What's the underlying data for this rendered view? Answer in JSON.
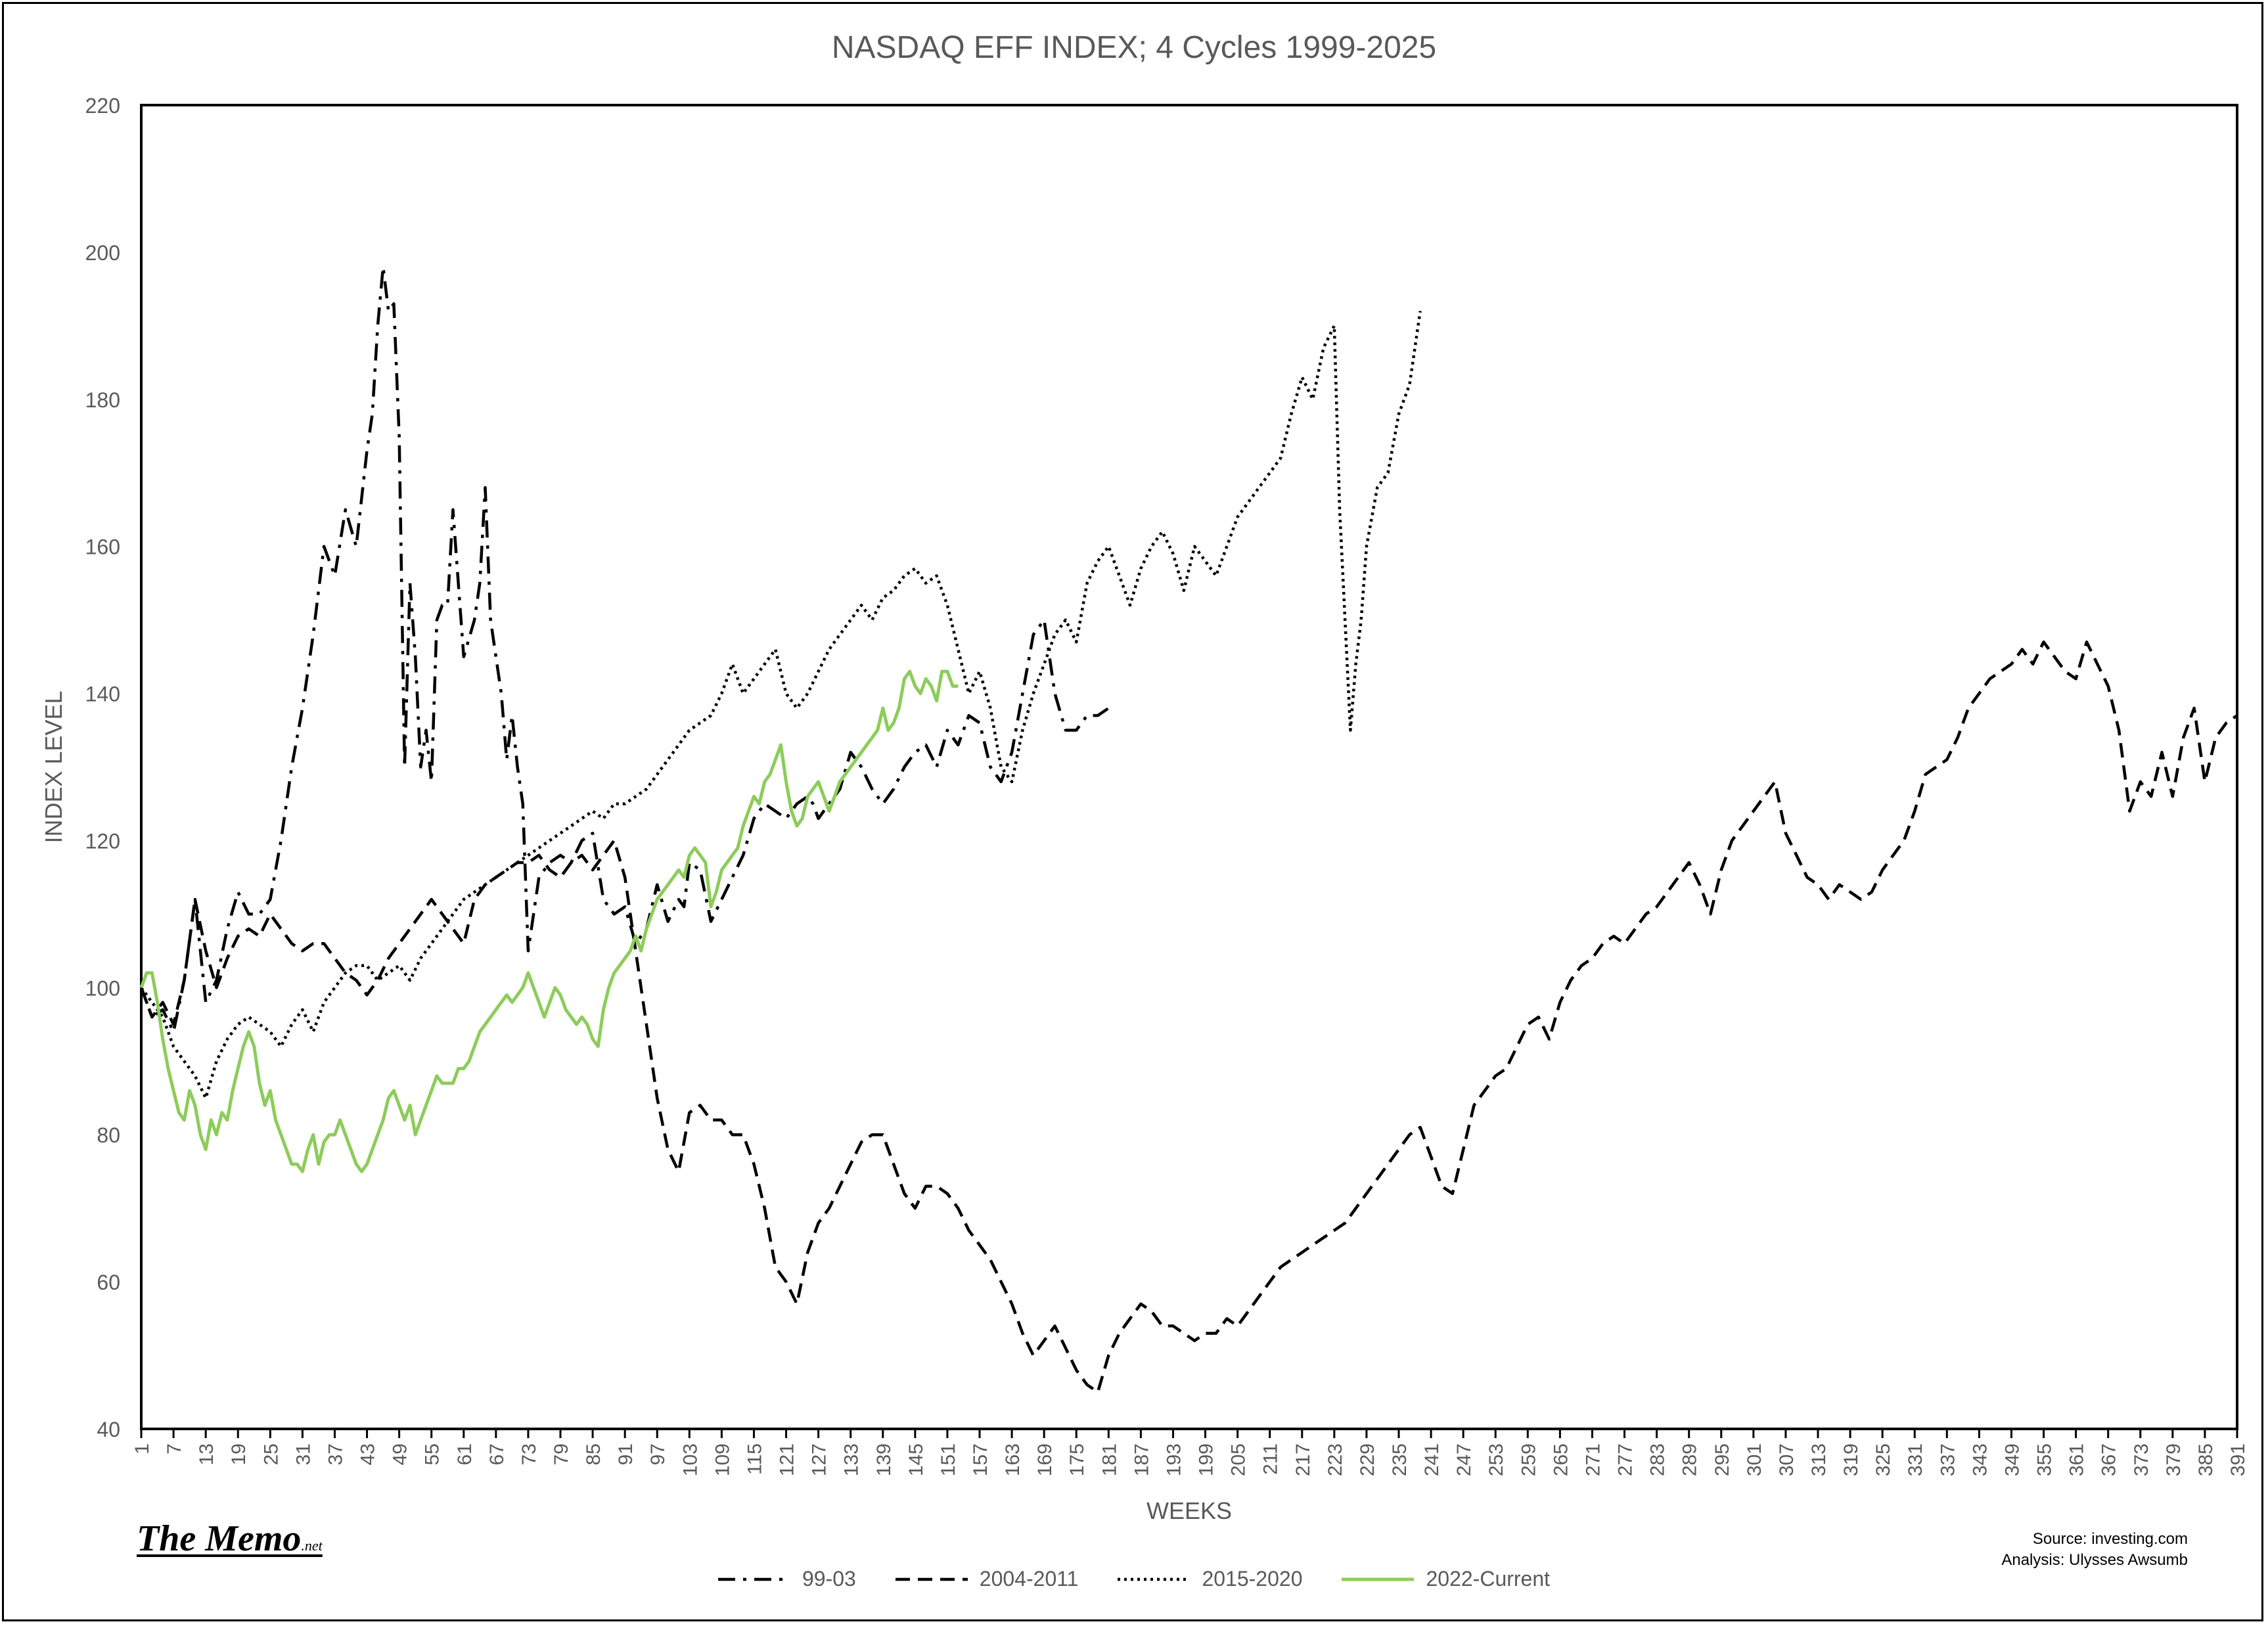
{
  "chart_data": {
    "type": "line",
    "title": "NASDAQ EFF INDEX; 4 Cycles 1999-2025",
    "xlabel": "WEEKS",
    "ylabel": "INDEX LEVEL",
    "xlim": [
      1,
      391
    ],
    "ylim": [
      40,
      220
    ],
    "yticks": [
      40,
      60,
      80,
      100,
      120,
      140,
      160,
      180,
      200,
      220
    ],
    "xticks": [
      1,
      7,
      13,
      19,
      25,
      31,
      37,
      43,
      49,
      55,
      61,
      67,
      73,
      79,
      85,
      91,
      97,
      103,
      109,
      115,
      121,
      127,
      133,
      139,
      145,
      151,
      157,
      163,
      169,
      175,
      181,
      187,
      193,
      199,
      205,
      211,
      217,
      223,
      229,
      235,
      241,
      247,
      253,
      259,
      265,
      271,
      277,
      283,
      289,
      295,
      301,
      307,
      313,
      319,
      325,
      331,
      337,
      343,
      349,
      355,
      361,
      367,
      373,
      379,
      385,
      391
    ],
    "legend_position": "bottom",
    "series": [
      {
        "name": "99-03",
        "color": "#000000",
        "dash": "dashdot",
        "x": [
          1,
          3,
          5,
          7,
          9,
          11,
          13,
          15,
          17,
          19,
          21,
          23,
          25,
          27,
          29,
          31,
          33,
          35,
          37,
          39,
          41,
          43,
          44,
          45,
          46,
          47,
          48,
          49,
          50,
          51,
          52,
          53,
          54,
          55,
          56,
          57,
          58,
          59,
          61,
          63,
          64,
          65,
          66,
          67,
          68,
          69,
          70,
          71,
          72,
          73,
          75,
          77,
          79,
          81,
          83,
          85,
          87,
          89,
          91,
          93,
          95,
          97,
          99,
          101,
          102,
          103,
          105,
          107,
          109,
          111,
          113,
          115,
          117,
          119,
          121,
          123,
          125,
          126,
          127,
          129,
          131,
          133,
          135,
          137,
          139,
          141,
          143,
          145,
          147,
          149,
          151,
          153,
          155,
          157,
          159,
          161,
          163,
          165,
          167,
          169,
          171,
          173,
          175,
          177,
          179,
          181
        ],
        "y": [
          100,
          96,
          97,
          94,
          101,
          112,
          98,
          101,
          108,
          113,
          110,
          110,
          112,
          120,
          130,
          138,
          148,
          160,
          156,
          165,
          160,
          173,
          178,
          190,
          198,
          192,
          193,
          175,
          130,
          155,
          145,
          130,
          135,
          128,
          150,
          152,
          152,
          165,
          145,
          150,
          155,
          168,
          150,
          145,
          140,
          131,
          137,
          130,
          125,
          105,
          115,
          117,
          118,
          117,
          120,
          121,
          112,
          110,
          111,
          106,
          108,
          114,
          109,
          112,
          111,
          117,
          116,
          109,
          112,
          115,
          118,
          123,
          125,
          124,
          123,
          125,
          126,
          125,
          123,
          125,
          127,
          132,
          130,
          127,
          125,
          127,
          130,
          132,
          133,
          130,
          135,
          133,
          137,
          136,
          130,
          128,
          132,
          140,
          148,
          150,
          140,
          135,
          135,
          137,
          137,
          138
        ]
      },
      {
        "name": "2004-2011",
        "color": "#000000",
        "dash": "dash",
        "x": [
          1,
          3,
          5,
          7,
          9,
          11,
          13,
          15,
          17,
          19,
          21,
          23,
          25,
          27,
          29,
          31,
          33,
          35,
          37,
          39,
          41,
          43,
          45,
          47,
          49,
          51,
          53,
          55,
          57,
          59,
          61,
          63,
          65,
          67,
          69,
          71,
          73,
          75,
          77,
          79,
          81,
          83,
          85,
          87,
          89,
          91,
          93,
          95,
          97,
          99,
          101,
          103,
          105,
          107,
          109,
          111,
          113,
          115,
          117,
          119,
          121,
          123,
          125,
          127,
          129,
          131,
          133,
          135,
          137,
          139,
          141,
          143,
          145,
          147,
          149,
          151,
          153,
          155,
          157,
          159,
          161,
          163,
          165,
          167,
          169,
          171,
          173,
          175,
          177,
          179,
          181,
          183,
          185,
          187,
          189,
          191,
          193,
          195,
          197,
          199,
          201,
          203,
          205,
          207,
          209,
          211,
          213,
          215,
          217,
          219,
          221,
          223,
          225,
          227,
          229,
          231,
          233,
          235,
          237,
          239,
          241,
          243,
          245,
          247,
          249,
          251,
          253,
          255,
          257,
          259,
          261,
          263,
          265,
          267,
          269,
          271,
          273,
          275,
          277,
          279,
          281,
          283,
          285,
          287,
          289,
          291,
          293,
          295,
          297,
          299,
          301,
          303,
          305,
          307,
          309,
          311,
          313,
          315,
          317,
          319,
          321,
          323,
          325,
          327,
          329,
          331,
          333,
          335,
          337,
          339,
          341,
          343,
          345,
          347,
          349,
          351,
          353,
          355,
          357,
          359,
          361,
          363,
          365,
          367,
          369,
          371,
          373,
          375,
          377,
          379,
          381,
          383,
          385,
          387,
          389,
          391
        ],
        "y": [
          100,
          96,
          98,
          95,
          101,
          112,
          105,
          100,
          104,
          107,
          108,
          107,
          110,
          108,
          106,
          105,
          106,
          106,
          104,
          102,
          101,
          99,
          101,
          104,
          106,
          108,
          110,
          112,
          110,
          108,
          106,
          112,
          114,
          115,
          116,
          117,
          117,
          118,
          116,
          115,
          117,
          118,
          116,
          118,
          120,
          115,
          105,
          95,
          85,
          78,
          75,
          83,
          84,
          82,
          82,
          80,
          80,
          76,
          70,
          62,
          60,
          57,
          64,
          68,
          70,
          73,
          76,
          79,
          80,
          80,
          76,
          72,
          70,
          73,
          73,
          72,
          70,
          67,
          65,
          63,
          60,
          57,
          53,
          50,
          52,
          54,
          51,
          48,
          46,
          45,
          50,
          53,
          55,
          57,
          56,
          54,
          54,
          53,
          52,
          53,
          53,
          55,
          54,
          56,
          58,
          60,
          62,
          63,
          64,
          65,
          66,
          67,
          68,
          70,
          72,
          74,
          76,
          78,
          80,
          81,
          77,
          73,
          72,
          78,
          84,
          86,
          88,
          89,
          92,
          95,
          96,
          93,
          98,
          101,
          103,
          104,
          106,
          107,
          106,
          108,
          110,
          111,
          113,
          115,
          117,
          114,
          110,
          116,
          120,
          122,
          124,
          126,
          128,
          121,
          118,
          115,
          114,
          112,
          114,
          113,
          112,
          113,
          116,
          118,
          120,
          124,
          129,
          130,
          131,
          134,
          138,
          140,
          142,
          143,
          144,
          146,
          144,
          147,
          145,
          143,
          142,
          147,
          144,
          141,
          135,
          124,
          128,
          126,
          132,
          126,
          134,
          138,
          128,
          134,
          136,
          137
        ]
      },
      {
        "name": "2015-2020",
        "color": "#000000",
        "dash": "dot",
        "x": [
          1,
          3,
          5,
          7,
          9,
          11,
          13,
          15,
          17,
          19,
          21,
          23,
          25,
          27,
          29,
          31,
          33,
          35,
          37,
          39,
          41,
          43,
          45,
          47,
          49,
          51,
          53,
          55,
          57,
          59,
          61,
          63,
          65,
          67,
          69,
          71,
          73,
          75,
          77,
          79,
          81,
          83,
          85,
          87,
          89,
          91,
          93,
          95,
          97,
          99,
          101,
          103,
          105,
          107,
          109,
          111,
          113,
          115,
          117,
          119,
          121,
          123,
          125,
          127,
          129,
          131,
          133,
          135,
          137,
          139,
          141,
          143,
          145,
          147,
          149,
          151,
          153,
          155,
          157,
          159,
          161,
          163,
          165,
          167,
          169,
          171,
          173,
          175,
          177,
          179,
          181,
          183,
          185,
          187,
          189,
          191,
          193,
          195,
          197,
          199,
          201,
          203,
          205,
          207,
          209,
          211,
          213,
          215,
          217,
          219,
          221,
          223,
          224,
          225,
          226,
          227,
          228,
          229,
          231,
          233,
          235,
          237,
          239
        ],
        "y": [
          100,
          98,
          96,
          92,
          90,
          88,
          85,
          90,
          93,
          95,
          96,
          95,
          94,
          92,
          95,
          97,
          94,
          98,
          100,
          102,
          103,
          103,
          101,
          102,
          103,
          101,
          104,
          106,
          108,
          110,
          112,
          113,
          114,
          115,
          116,
          117,
          118,
          119,
          120,
          121,
          122,
          123,
          124,
          123,
          125,
          125,
          126,
          127,
          129,
          131,
          133,
          135,
          136,
          137,
          140,
          144,
          140,
          142,
          144,
          146,
          140,
          138,
          140,
          143,
          146,
          148,
          150,
          152,
          150,
          153,
          154,
          156,
          157,
          155,
          156,
          152,
          146,
          140,
          143,
          138,
          130,
          128,
          135,
          140,
          144,
          148,
          150,
          147,
          155,
          158,
          160,
          156,
          152,
          157,
          160,
          162,
          159,
          154,
          160,
          158,
          156,
          160,
          164,
          166,
          168,
          170,
          172,
          178,
          183,
          180,
          187,
          190,
          165,
          150,
          135,
          144,
          150,
          160,
          168,
          170,
          178,
          182,
          192
        ]
      },
      {
        "name": "2022-Current",
        "color": "#8dcc5a",
        "dash": "solid",
        "x": [
          1,
          2,
          3,
          4,
          5,
          6,
          7,
          8,
          9,
          10,
          11,
          12,
          13,
          14,
          15,
          16,
          17,
          18,
          19,
          20,
          21,
          22,
          23,
          24,
          25,
          26,
          27,
          28,
          29,
          30,
          31,
          32,
          33,
          34,
          35,
          36,
          37,
          38,
          39,
          40,
          41,
          42,
          43,
          44,
          45,
          46,
          47,
          48,
          49,
          50,
          51,
          52,
          53,
          54,
          55,
          56,
          57,
          58,
          59,
          60,
          61,
          62,
          63,
          64,
          65,
          66,
          67,
          68,
          69,
          70,
          71,
          72,
          73,
          74,
          75,
          76,
          77,
          78,
          79,
          80,
          81,
          82,
          83,
          84,
          85,
          86,
          87,
          88,
          89,
          90,
          91,
          92,
          93,
          94,
          95,
          96,
          97,
          98,
          99,
          100,
          101,
          102,
          103,
          104,
          105,
          106,
          107,
          108,
          109,
          110,
          111,
          112,
          113,
          114,
          115,
          116,
          117,
          118,
          119,
          120,
          121,
          122,
          123,
          124,
          125,
          126,
          127,
          128,
          129,
          130,
          131,
          132,
          133,
          134,
          135,
          136,
          137,
          138,
          139,
          140,
          141,
          142,
          143,
          144,
          145,
          146,
          147,
          148,
          149,
          150,
          151,
          152,
          153
        ],
        "y": [
          100,
          102,
          102,
          98,
          93,
          89,
          86,
          83,
          82,
          86,
          84,
          80,
          78,
          82,
          80,
          83,
          82,
          86,
          89,
          92,
          94,
          92,
          87,
          84,
          86,
          82,
          80,
          78,
          76,
          76,
          75,
          78,
          80,
          76,
          79,
          80,
          80,
          82,
          80,
          78,
          76,
          75,
          76,
          78,
          80,
          82,
          85,
          86,
          84,
          82,
          84,
          80,
          82,
          84,
          86,
          88,
          87,
          87,
          87,
          89,
          89,
          90,
          92,
          94,
          95,
          96,
          97,
          98,
          99,
          98,
          99,
          100,
          102,
          100,
          98,
          96,
          98,
          100,
          99,
          97,
          96,
          95,
          96,
          95,
          93,
          92,
          97,
          100,
          102,
          103,
          104,
          105,
          107,
          105,
          108,
          110,
          112,
          113,
          114,
          115,
          116,
          115,
          118,
          119,
          118,
          117,
          111,
          113,
          116,
          117,
          118,
          119,
          122,
          124,
          126,
          125,
          128,
          129,
          131,
          133,
          128,
          124,
          122,
          123,
          126,
          127,
          128,
          126,
          124,
          126,
          128,
          129,
          130,
          131,
          132,
          133,
          134,
          135,
          138,
          135,
          136,
          138,
          142,
          143,
          141,
          140,
          142,
          141,
          139,
          143,
          143,
          141,
          141
        ]
      }
    ]
  },
  "footer": {
    "brand": "The Memo",
    "brand_suffix": ".net",
    "source_line1": "Source: investing.com",
    "source_line2": "Analysis: Ulysses Awsumb"
  }
}
